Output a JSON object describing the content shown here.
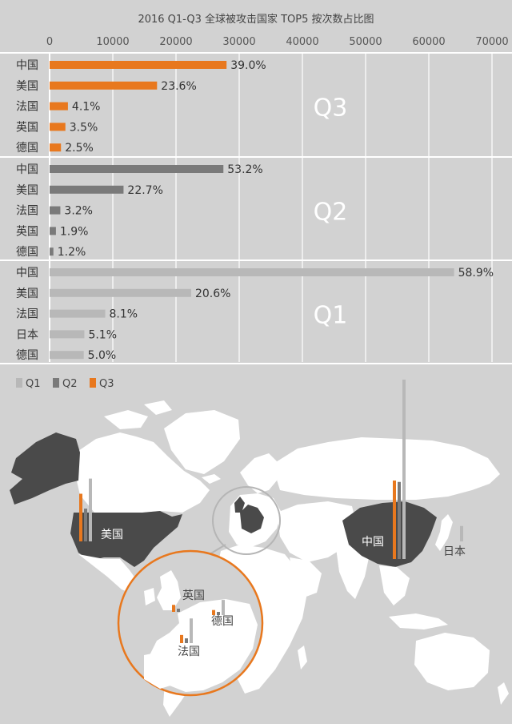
{
  "chart_data": {
    "type": "bar",
    "orientation": "horizontal",
    "title": "2016 Q1-Q3 全球被攻击国家 TOP5 按次数占比图",
    "xlim": [
      0,
      70000
    ],
    "x_ticks": [
      "0",
      "10000",
      "20000",
      "30000",
      "40000",
      "50000",
      "60000",
      "70000"
    ],
    "grid": true,
    "legend_position": "bottom-left",
    "legend": [
      "Q1",
      "Q2",
      "Q3"
    ],
    "colors": {
      "Q1": "#b8b8b8",
      "Q2": "#7a7a7a",
      "Q3": "#e8781e"
    },
    "series": [
      {
        "name": "Q3",
        "categories": [
          "中国",
          "美国",
          "法国",
          "英国",
          "德国"
        ],
        "values": [
          28000,
          17000,
          2900,
          2500,
          1800
        ],
        "labels": [
          "39.0%",
          "23.6%",
          "4.1%",
          "3.5%",
          "2.5%"
        ]
      },
      {
        "name": "Q2",
        "categories": [
          "中国",
          "美国",
          "法国",
          "英国",
          "德国"
        ],
        "values": [
          27500,
          11700,
          1700,
          1000,
          600
        ],
        "labels": [
          "53.2%",
          "22.7%",
          "3.2%",
          "1.9%",
          "1.2%"
        ]
      },
      {
        "name": "Q1",
        "categories": [
          "中国",
          "美国",
          "法国",
          "日本",
          "德国"
        ],
        "values": [
          64000,
          22400,
          8800,
          5500,
          5400
        ],
        "labels": [
          "58.9%",
          "20.6%",
          "8.1%",
          "5.1%",
          "5.0%"
        ]
      }
    ]
  },
  "map": {
    "labels": {
      "usa": "美国",
      "china": "中国",
      "japan": "日本",
      "uk": "英国",
      "germany": "德国",
      "france": "法国"
    }
  }
}
